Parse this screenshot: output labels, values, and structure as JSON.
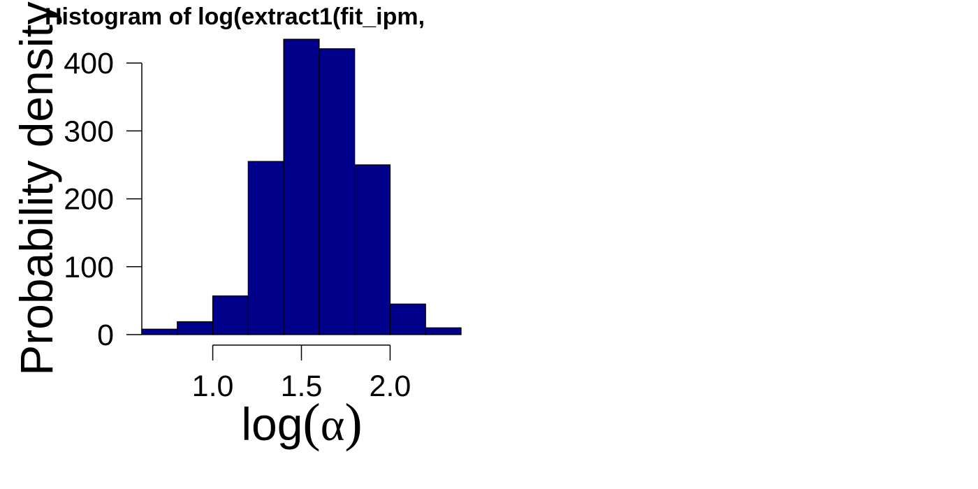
{
  "chart_data": {
    "type": "bar",
    "title": "Histogram of log(extract1(fit_ipm,",
    "xlabel": {
      "prefix": "log",
      "open_paren": "(",
      "symbol": "α",
      "close_paren": ")"
    },
    "ylabel": "Probability density",
    "bin_edges": [
      0.6,
      0.8,
      1.0,
      1.2,
      1.4,
      1.6,
      1.8,
      2.0,
      2.2,
      2.4
    ],
    "values": [
      8,
      19,
      57,
      255,
      435,
      421,
      250,
      45,
      10
    ],
    "xlim": [
      0.6,
      2.4
    ],
    "ylim": [
      0,
      440
    ],
    "x_ticks": [
      1.0,
      1.5,
      2.0
    ],
    "x_tick_labels": [
      "1.0",
      "1.5",
      "2.0"
    ],
    "y_ticks": [
      0,
      100,
      200,
      300,
      400
    ],
    "y_tick_labels": [
      "0",
      "100",
      "200",
      "300",
      "400"
    ],
    "bar_color": "#00008B",
    "bar_edge_color": "#000000",
    "grid": false
  }
}
